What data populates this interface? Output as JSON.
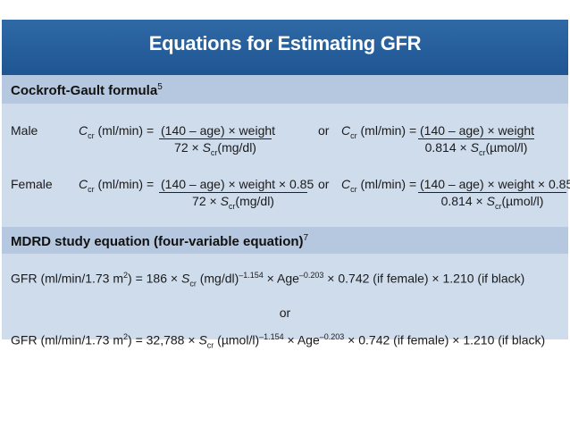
{
  "title": "Equations for Estimating GFR",
  "cockcroft": {
    "heading": "Cockroft-Gault formula",
    "ref": "5",
    "or": "or",
    "male": {
      "label": "Male",
      "lhs_a": "C",
      "lhs_sub": "cr",
      "lhs_b": " (ml/min) = ",
      "num": "(140 – age) × weight",
      "den_a": "72 × ",
      "den_s": "S",
      "den_sub": "cr",
      "den_b": "(mg/dl)",
      "alt_lhs_b": " (ml/min) = ",
      "alt_num": "(140 – age) × weight",
      "alt_den_a": "0.814 × ",
      "alt_den_b": "(µmol/l)"
    },
    "female": {
      "label": "Female",
      "lhs_b": " (ml/min) = ",
      "num": "(140 – age) × weight × 0.85",
      "den_a": "72 × ",
      "den_b": "(mg/dl)",
      "alt_lhs_b": " (ml/min) = ",
      "alt_num": "(140 – age) × weight × 0.85",
      "alt_den_a": "0.814 × ",
      "alt_den_b": "(µmol/l)"
    }
  },
  "mdrd": {
    "heading": "MDRD study equation (four-variable equation)",
    "ref": "7",
    "or": "or",
    "eq1": {
      "a": "GFR (ml/min/1.73 m",
      "a_sup": "2",
      "b": ") = 186 × ",
      "s": "S",
      "s_sub": "cr",
      "c": " (mg/dl)",
      "c_sup": "–1.154",
      "d": " × Age",
      "d_sup": "–0.203",
      "e": " × 0.742 (if female) × 1.210 (if black)"
    },
    "eq2": {
      "a": "GFR (ml/min/1.73 m",
      "a_sup": "2",
      "b": ") = 32,788 × ",
      "s": "S",
      "s_sub": "cr",
      "c": " (µmol/l)",
      "c_sup": "–1.154",
      "d": " × Age",
      "d_sup": "–0.203",
      "e": " × 0.742 (if female) × 1.210 (if black)"
    }
  }
}
